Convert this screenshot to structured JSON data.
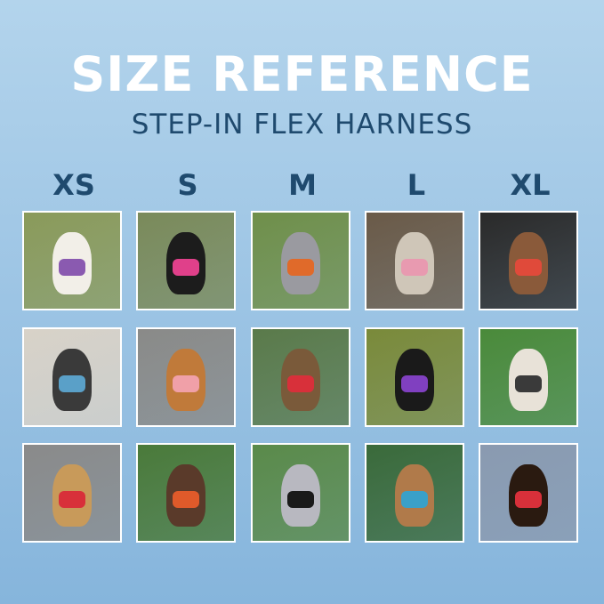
{
  "title": "SIZE REFERENCE",
  "subtitle": "STEP-IN FLEX HARNESS",
  "sizes": [
    "XS",
    "S",
    "M",
    "L",
    "XL"
  ],
  "photos": [
    {
      "size": "XS",
      "bg": "#8a9a5a",
      "dog": "#f2efe8",
      "harness": "#8a5ab0"
    },
    {
      "size": "S",
      "bg": "#7a8a5a",
      "dog": "#1c1c1c",
      "harness": "#e0408a"
    },
    {
      "size": "M",
      "bg": "#6f8f4a",
      "dog": "#9a9aa0",
      "harness": "#e06a2a"
    },
    {
      "size": "L",
      "bg": "#6a5a48",
      "dog": "#cfc6b8",
      "harness": "#e89ab0"
    },
    {
      "size": "XL",
      "bg": "#2a2a2a",
      "dog": "#8a5a3a",
      "harness": "#e04a3a"
    },
    {
      "size": "XS",
      "bg": "#d8d2c8",
      "dog": "#3a3a3a",
      "harness": "#5aa0c8"
    },
    {
      "size": "S",
      "bg": "#8a8a88",
      "dog": "#c07a3a",
      "harness": "#f0a0a8"
    },
    {
      "size": "M",
      "bg": "#5a7a4a",
      "dog": "#7a5a3a",
      "harness": "#d8303a"
    },
    {
      "size": "L",
      "bg": "#7a8a3a",
      "dog": "#1a1a1a",
      "harness": "#8040c0"
    },
    {
      "size": "XL",
      "bg": "#4a8a3a",
      "dog": "#e8e2d8",
      "harness": "#3a3a3a"
    },
    {
      "size": "XS",
      "bg": "#8a8a8a",
      "dog": "#c89a5a",
      "harness": "#d8303a"
    },
    {
      "size": "S",
      "bg": "#4a7a3a",
      "dog": "#5a3a2a",
      "harness": "#e05a2a"
    },
    {
      "size": "M",
      "bg": "#5a8a4a",
      "dog": "#b8b8c0",
      "harness": "#1a1a1a"
    },
    {
      "size": "L",
      "bg": "#3a6a3a",
      "dog": "#b07a4a",
      "harness": "#3aa0c8"
    },
    {
      "size": "XL",
      "bg": "#8a9ab0",
      "dog": "#2a1a10",
      "harness": "#d8303a"
    }
  ]
}
